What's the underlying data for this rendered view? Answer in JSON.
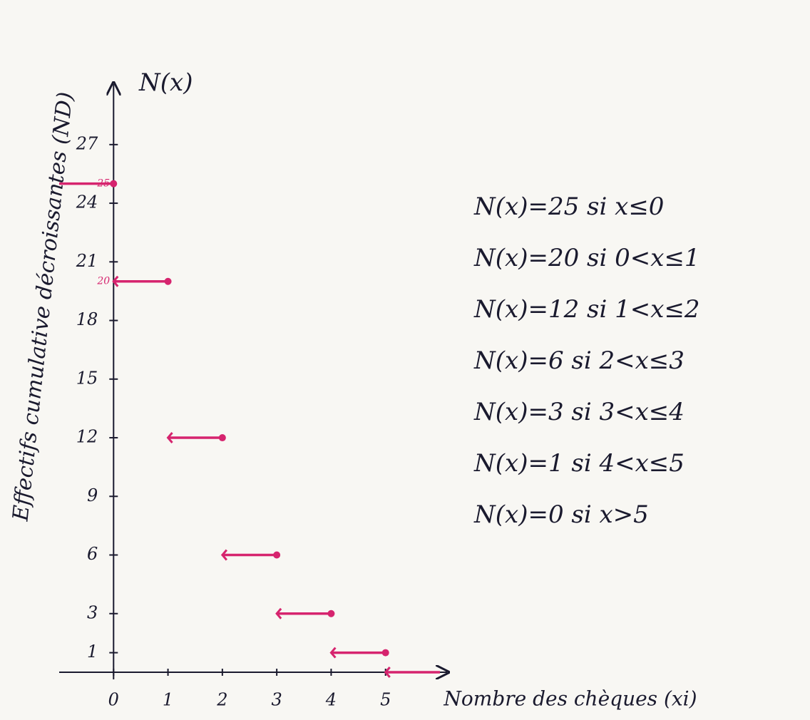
{
  "chart_data": {
    "type": "step",
    "y_axis_title": "N(x)",
    "y_label": "Effectifs cumulative décroissantes (ND)",
    "x_label": "Nombre des chèques (xi)",
    "xlim": [
      -1,
      6
    ],
    "ylim": [
      0,
      29
    ],
    "xticks": [
      0,
      1,
      2,
      3,
      4,
      5
    ],
    "yticks": [
      1,
      3,
      6,
      9,
      12,
      15,
      18,
      21,
      24,
      27
    ],
    "breakpoints": [
      0,
      1,
      2,
      3,
      4,
      5
    ],
    "values": [
      25,
      20,
      12,
      6,
      3,
      1,
      0
    ],
    "value_labels": [
      "25",
      "20",
      null,
      null,
      null,
      null,
      null
    ],
    "color": "#d6246e",
    "annotations": [
      "N(x)=25 si x≤0",
      "N(x)=20 si 0<x≤1",
      "N(x)=12 si 1<x≤2",
      "N(x)=6 si 2<x≤3",
      "N(x)=3 si 3<x≤4",
      "N(x)=1 si 4<x≤5",
      "N(x)=0 si x>5"
    ]
  }
}
